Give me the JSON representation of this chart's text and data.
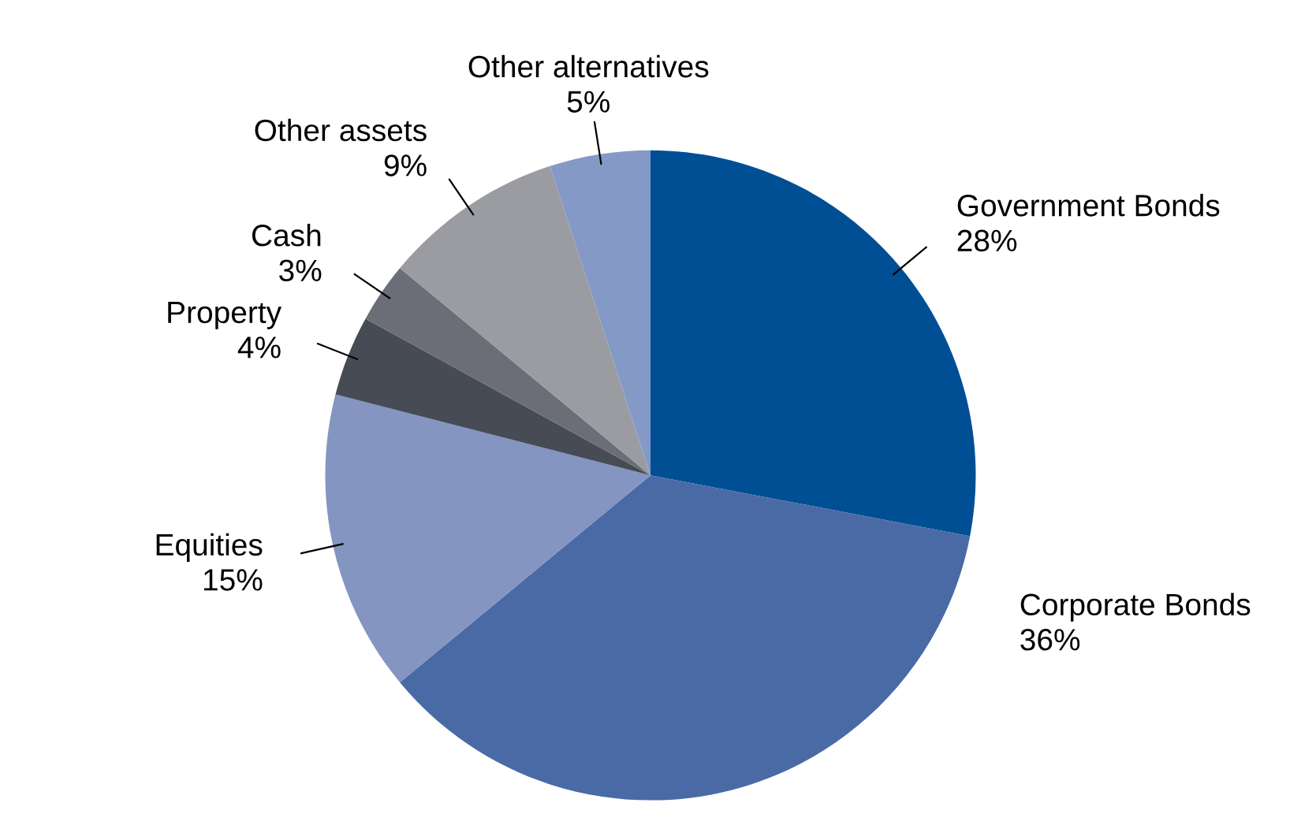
{
  "chart_data": {
    "type": "pie",
    "categories": [
      "Government Bonds",
      "Corporate Bonds",
      "Equities",
      "Property",
      "Cash",
      "Other assets",
      "Other alternatives"
    ],
    "values": [
      28,
      36,
      15,
      4,
      3,
      9,
      5
    ],
    "value_labels": [
      "28%",
      "36%",
      "15%",
      "4%",
      "3%",
      "9%",
      "5%"
    ],
    "colors": [
      "#004f95",
      "#4a6aa5",
      "#8395c0",
      "#474b55",
      "#6b6e76",
      "#9a9ca2",
      "#8499c6"
    ]
  }
}
